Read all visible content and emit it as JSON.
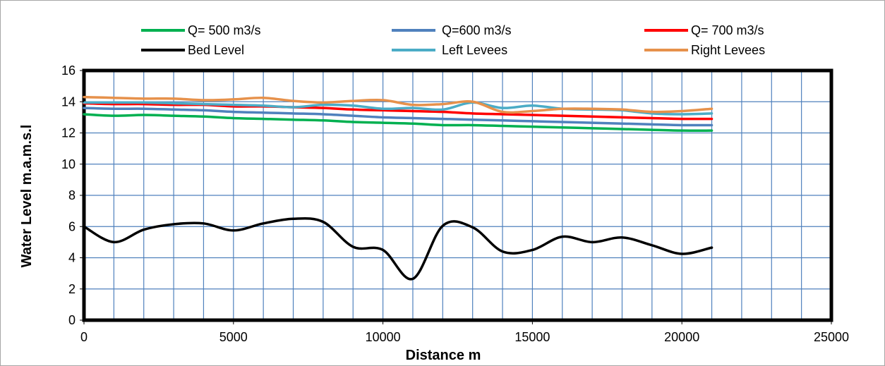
{
  "chart_data": {
    "type": "line",
    "title": "",
    "xlabel": "Distance  m",
    "ylabel": "Water Level m.a.m.s.l",
    "xlim": [
      0,
      25000
    ],
    "ylim": [
      0,
      16
    ],
    "x_ticks": [
      0,
      5000,
      10000,
      15000,
      20000,
      25000
    ],
    "y_ticks": [
      0,
      2,
      4,
      6,
      8,
      10,
      12,
      14,
      16
    ],
    "x_tick_labels": [
      "0",
      "5000",
      "10000",
      "15000",
      "20000",
      "25000"
    ],
    "y_tick_labels": [
      "0",
      "2",
      "4",
      "6",
      "8",
      "10",
      "12",
      "14",
      "16"
    ],
    "grid": true,
    "legend_position": "top",
    "x": [
      0,
      1000,
      2000,
      3000,
      4000,
      5000,
      6000,
      7000,
      8000,
      9000,
      10000,
      11000,
      12000,
      13000,
      14000,
      15000,
      16000,
      17000,
      18000,
      19000,
      20000,
      21000
    ],
    "series": [
      {
        "name": "Q= 500 m3/s",
        "color": "#00b050",
        "values": [
          13.2,
          13.1,
          13.15,
          13.1,
          13.05,
          12.95,
          12.9,
          12.85,
          12.8,
          12.7,
          12.65,
          12.6,
          12.5,
          12.5,
          12.45,
          12.4,
          12.35,
          12.3,
          12.25,
          12.2,
          12.15,
          12.15
        ]
      },
      {
        "name": "Q=600 m3/s",
        "color": "#4f81bd",
        "values": [
          13.6,
          13.55,
          13.55,
          13.5,
          13.45,
          13.35,
          13.3,
          13.25,
          13.2,
          13.1,
          13.0,
          12.95,
          12.9,
          12.85,
          12.8,
          12.75,
          12.7,
          12.65,
          12.6,
          12.55,
          12.5,
          12.5
        ]
      },
      {
        "name": "Q= 700 m3/s",
        "color": "#ff0000",
        "values": [
          13.9,
          13.85,
          13.85,
          13.8,
          13.8,
          13.7,
          13.7,
          13.65,
          13.6,
          13.5,
          13.45,
          13.4,
          13.35,
          13.25,
          13.2,
          13.15,
          13.1,
          13.05,
          13.0,
          12.95,
          12.9,
          12.9
        ]
      },
      {
        "name": "Bed Level",
        "color": "#000000",
        "values": [
          6.0,
          5.0,
          5.8,
          6.15,
          6.2,
          5.75,
          6.2,
          6.5,
          6.3,
          4.7,
          4.5,
          2.65,
          6.05,
          5.95,
          4.4,
          4.5,
          5.35,
          5.0,
          5.3,
          4.8,
          4.25,
          4.65
        ]
      },
      {
        "name": "Left Levees",
        "color": "#4bacc6",
        "values": [
          13.95,
          13.95,
          13.95,
          13.9,
          13.85,
          13.8,
          13.75,
          13.65,
          13.8,
          13.75,
          13.55,
          13.6,
          13.5,
          13.95,
          13.6,
          13.75,
          13.55,
          13.5,
          13.45,
          13.25,
          13.2,
          13.25
        ]
      },
      {
        "name": "Right Levees",
        "color": "#e6914b",
        "values": [
          14.3,
          14.25,
          14.2,
          14.2,
          14.1,
          14.15,
          14.25,
          14.05,
          13.95,
          14.05,
          14.1,
          13.8,
          13.85,
          14.0,
          13.35,
          13.4,
          13.55,
          13.55,
          13.5,
          13.35,
          13.4,
          13.55
        ]
      }
    ]
  }
}
